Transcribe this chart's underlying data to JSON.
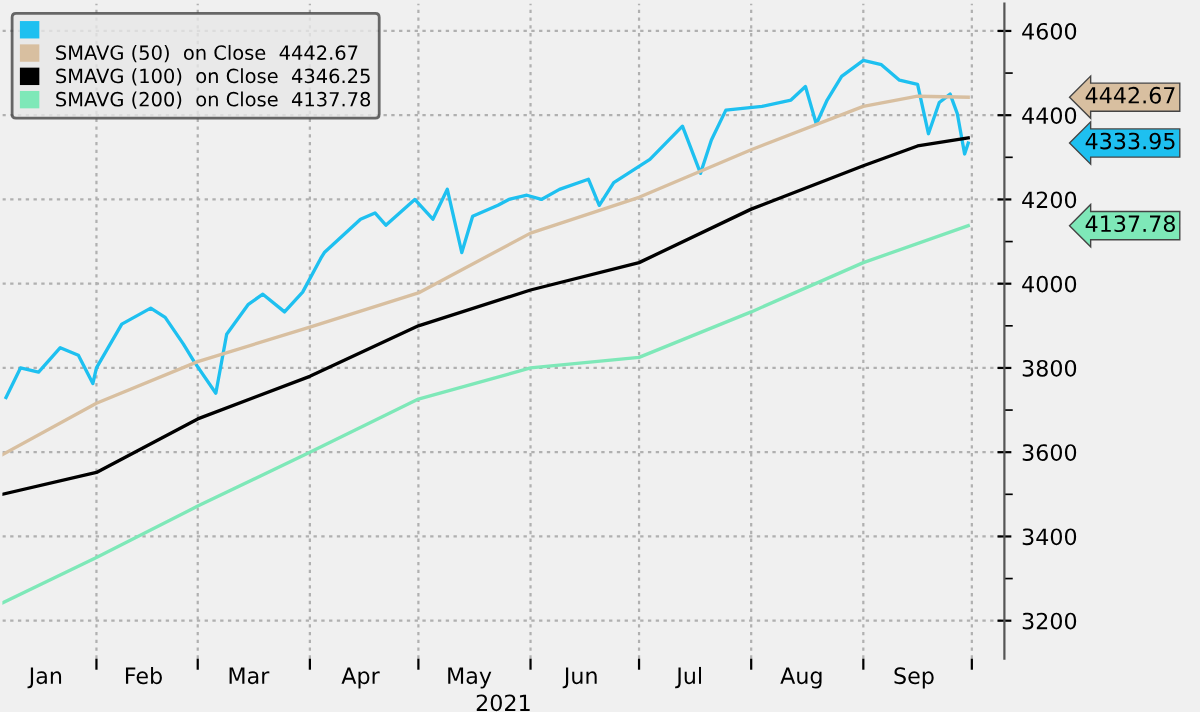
{
  "chart_data": {
    "type": "line",
    "xlabel": "2021",
    "xlim": [
      "2021-01-06",
      "2021-10-10"
    ],
    "xticks": [
      {
        "value": "2021-01-18",
        "label": "Jan"
      },
      {
        "value": "2021-02-01",
        "label": null
      },
      {
        "value": "2021-02-14",
        "label": "Feb"
      },
      {
        "value": "2021-03-01",
        "label": null
      },
      {
        "value": "2021-03-15",
        "label": "Mar"
      },
      {
        "value": "2021-04-01",
        "label": null
      },
      {
        "value": "2021-04-15",
        "label": "Apr"
      },
      {
        "value": "2021-05-01",
        "label": null
      },
      {
        "value": "2021-05-15",
        "label": "May"
      },
      {
        "value": "2021-06-01",
        "label": null
      },
      {
        "value": "2021-06-15",
        "label": "Jun"
      },
      {
        "value": "2021-07-01",
        "label": null
      },
      {
        "value": "2021-07-15",
        "label": "Jul"
      },
      {
        "value": "2021-08-01",
        "label": null
      },
      {
        "value": "2021-08-15",
        "label": "Aug"
      },
      {
        "value": "2021-09-01",
        "label": null
      },
      {
        "value": "2021-09-15",
        "label": "Sep"
      },
      {
        "value": "2021-10-01",
        "label": null
      }
    ],
    "ylim": [
      3110,
      4665
    ],
    "yticks": [
      3200,
      {
        "value": 3300,
        "label": null
      },
      3400,
      {
        "value": 3500,
        "label": null
      },
      3600,
      {
        "value": 3700,
        "label": null
      },
      3800,
      {
        "value": 3900,
        "label": null
      },
      4000,
      {
        "value": 4100,
        "label": null
      },
      4200,
      {
        "value": 4300,
        "label": null
      },
      4400,
      {
        "value": 4500,
        "label": null
      },
      4600
    ],
    "grid": true,
    "legend": "top left",
    "annotations": [
      "4442.67",
      "4333.95",
      "4137.78"
    ],
    "series": [
      {
        "color": "#1ec0f0",
        "x": [
          "2021-01-07",
          "2021-01-11",
          "2021-01-16",
          "2021-01-22",
          "2021-01-27",
          "2021-01-31",
          "2021-02-01",
          "2021-02-08",
          "2021-02-16",
          "2021-02-20",
          "2021-02-25",
          "2021-02-28",
          "2021-03-06",
          "2021-03-09",
          "2021-03-15",
          "2021-03-19",
          "2021-03-25",
          "2021-03-30",
          "2021-04-04",
          "2021-04-05",
          "2021-04-15",
          "2021-04-19",
          "2021-04-22",
          "2021-04-30",
          "2021-05-05",
          "2021-05-09",
          "2021-05-13",
          "2021-05-16",
          "2021-05-23",
          "2021-05-26",
          "2021-05-31",
          "2021-06-04",
          "2021-06-09",
          "2021-06-17",
          "2021-06-20",
          "2021-06-24",
          "2021-07-04",
          "2021-07-13",
          "2021-07-18",
          "2021-07-21",
          "2021-07-25",
          "2021-08-04",
          "2021-08-12",
          "2021-08-16",
          "2021-08-19",
          "2021-08-22",
          "2021-08-26",
          "2021-09-01",
          "2021-09-06",
          "2021-09-11",
          "2021-09-16",
          "2021-09-19",
          "2021-09-22",
          "2021-09-25",
          "2021-09-27",
          "2021-09-29",
          "2021-09-30"
        ],
        "values": [
          3730,
          3800,
          3790,
          3848,
          3830,
          3763,
          3800,
          3904,
          3942,
          3920,
          3857,
          3815,
          3740,
          3880,
          3951,
          3975,
          3933,
          3980,
          4060,
          4074,
          4153,
          4168,
          4139,
          4200,
          4153,
          4224,
          4074,
          4160,
          4186,
          4200,
          4210,
          4200,
          4224,
          4248,
          4186,
          4240,
          4295,
          4374,
          4262,
          4341,
          4412,
          4421,
          4436,
          4468,
          4379,
          4436,
          4492,
          4530,
          4520,
          4483,
          4473,
          4356,
          4430,
          4450,
          4403,
          4308,
          4333.95
        ]
      },
      {
        "name": "SMAVG (50)  on Close  4442.67",
        "color": "#d8bfa0",
        "x": [
          "2021-01-06",
          "2021-02-01",
          "2021-03-01",
          "2021-04-01",
          "2021-05-01",
          "2021-06-01",
          "2021-07-01",
          "2021-08-01",
          "2021-09-01",
          "2021-09-16",
          "2021-09-30"
        ],
        "values": [
          3594,
          3716,
          3815,
          3897,
          3978,
          4120,
          4205,
          4318,
          4421,
          4445,
          4442.67
        ]
      },
      {
        "name": "SMAVG (100)  on Close  4346.25",
        "color": "#000000",
        "x": [
          "2021-01-06",
          "2021-02-01",
          "2021-03-01",
          "2021-04-01",
          "2021-05-01",
          "2021-06-01",
          "2021-07-01",
          "2021-08-01",
          "2021-09-01",
          "2021-09-16",
          "2021-09-30"
        ],
        "values": [
          3500,
          3552,
          3679,
          3780,
          3900,
          3985,
          4050,
          4177,
          4280,
          4327,
          4346.25
        ]
      },
      {
        "name": "SMAVG (200)  on Close  4137.78",
        "color": "#7ee8b8",
        "x": [
          "2021-01-06",
          "2021-02-01",
          "2021-03-01",
          "2021-04-01",
          "2021-05-01",
          "2021-06-01",
          "2021-07-01",
          "2021-08-01",
          "2021-09-01",
          "2021-09-30"
        ],
        "values": [
          3242,
          3350,
          3472,
          3600,
          3726,
          3800,
          3825,
          3933,
          4050,
          4137.78
        ]
      }
    ]
  }
}
